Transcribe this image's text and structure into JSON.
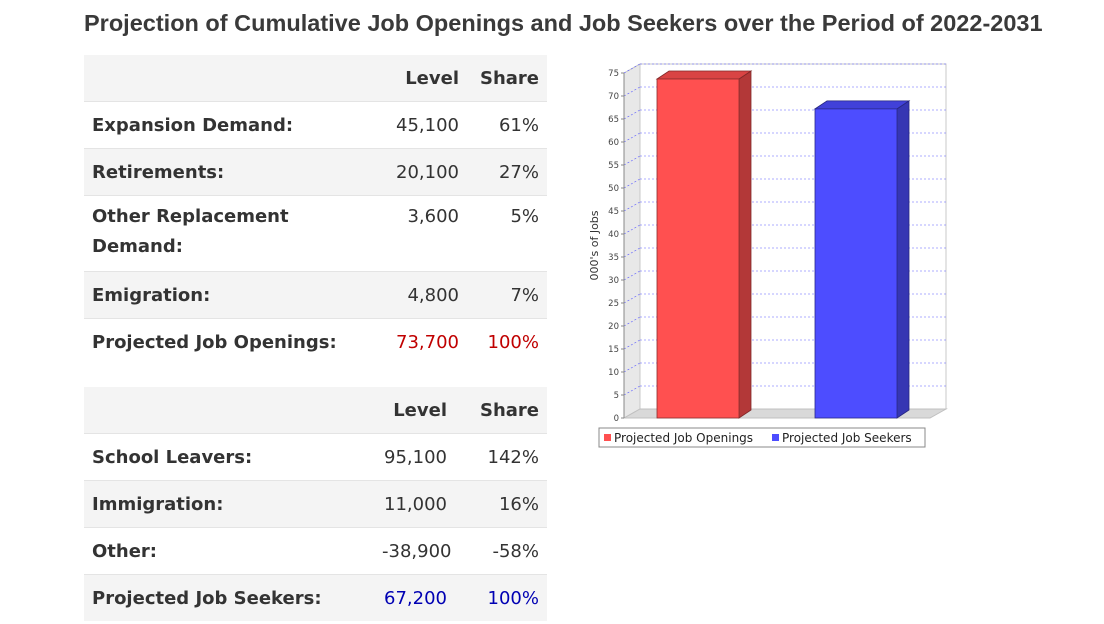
{
  "title": "Projection of Cumulative Job Openings and Job Seekers over the Period of 2022-2031",
  "openings_table": {
    "headers": [
      "",
      "Level",
      "Share"
    ],
    "rows": [
      {
        "label": "Expansion Demand:",
        "level": "45,100",
        "share": "61%"
      },
      {
        "label": "Retirements:",
        "level": "20,100",
        "share": "27%"
      },
      {
        "label": "Other Replacement Demand:",
        "level": "3,600",
        "share": "5%"
      },
      {
        "label": "Emigration:",
        "level": "4,800",
        "share": "7%"
      }
    ],
    "total": {
      "label": "Projected Job Openings:",
      "level": "73,700",
      "share": "100%"
    }
  },
  "seekers_table": {
    "headers": [
      "",
      "Level",
      "Share"
    ],
    "rows": [
      {
        "label": "School Leavers:",
        "level": "95,100",
        "share": "142%"
      },
      {
        "label": "Immigration:",
        "level": "11,000",
        "share": "16%"
      },
      {
        "label": "Other:",
        "level": "-38,900",
        "share": "-58%"
      }
    ],
    "total": {
      "label": "Projected Job Seekers:",
      "level": "67,200",
      "share": "100%"
    }
  },
  "colors": {
    "openings_total": "#c00000",
    "seekers_total": "#0000b3",
    "openings_bar": "#ff5050",
    "seekers_bar": "#4d4dff"
  },
  "chart_data": {
    "type": "bar",
    "ylabel": "000's of Jobs",
    "ylim": [
      0,
      75
    ],
    "yticks": [
      0,
      5,
      10,
      15,
      20,
      25,
      30,
      35,
      40,
      45,
      50,
      55,
      60,
      65,
      70,
      75
    ],
    "grid": true,
    "legend": "bottom",
    "series": [
      {
        "name": "Projected Job Openings",
        "values": [
          73.7
        ],
        "color": "#ff5050"
      },
      {
        "name": "Projected Job Seekers",
        "values": [
          67.2
        ],
        "color": "#4d4dff"
      }
    ]
  }
}
